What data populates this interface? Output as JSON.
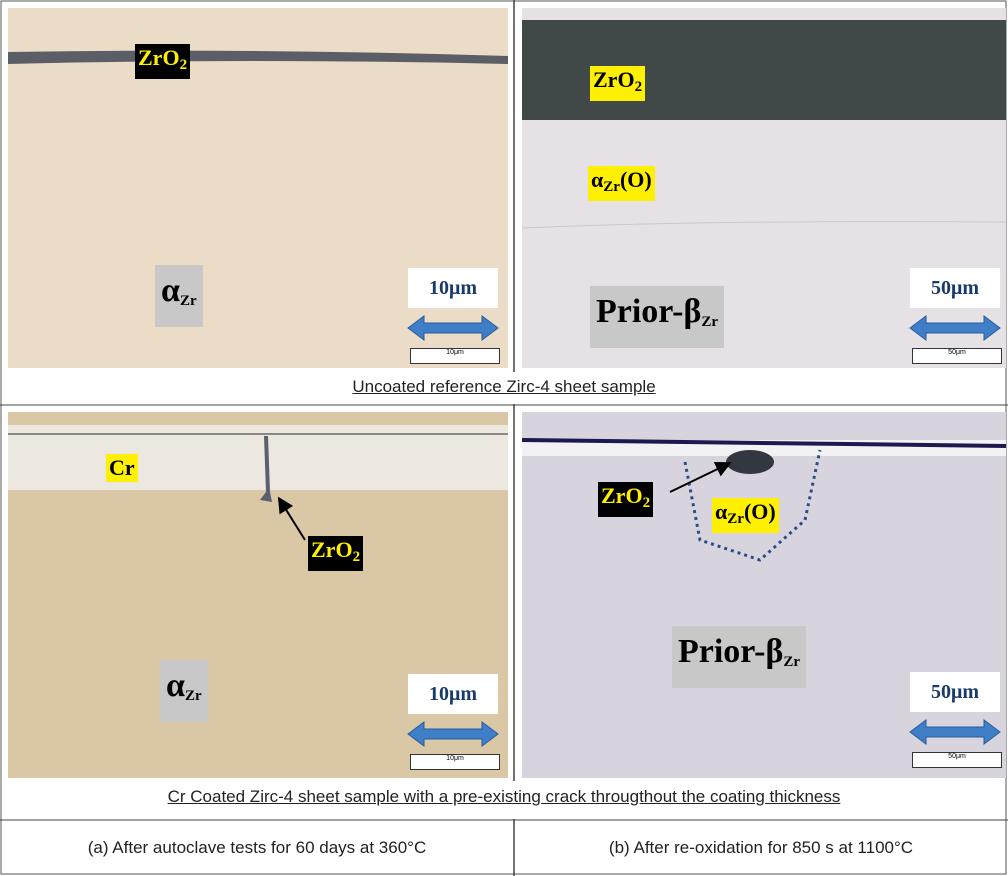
{
  "panels": [
    {
      "labels": [
        {
          "text": "ZrO",
          "sub": "2"
        },
        {
          "text": "α",
          "sub": "Zr"
        }
      ],
      "scale": {
        "label": "10μm",
        "bar_label": "10μm"
      }
    },
    {
      "labels": [
        {
          "text": "ZrO",
          "sub": "2"
        },
        {
          "text": "α",
          "sub": "Zr",
          "after": "(O)"
        },
        {
          "text": "Prior-β",
          "sub": "Zr"
        }
      ],
      "scale": {
        "label": "50μm",
        "bar_label": "50μm"
      }
    },
    {
      "labels": [
        {
          "text": "Cr"
        },
        {
          "text": "ZrO",
          "sub": "2"
        },
        {
          "text": "α",
          "sub": "Zr"
        }
      ],
      "scale": {
        "label": "10μm",
        "bar_label": "10μm"
      }
    },
    {
      "labels": [
        {
          "text": "ZrO",
          "sub": "2"
        },
        {
          "text": "α",
          "sub": "Zr",
          "after": "(O)"
        },
        {
          "text": "Prior-β",
          "sub": "Zr"
        }
      ],
      "scale": {
        "label": "50μm",
        "bar_label": "50μm"
      }
    }
  ],
  "row_captions": [
    "Uncoated reference Zirc-4 sheet sample",
    "Cr Coated Zirc-4 sheet sample with a pre-existing crack througthout the coating thickness"
  ],
  "column_captions": [
    "(a) After autoclave tests for 60 days at 360°C",
    "(b) After re-oxidation for 850 s at 1100°C"
  ]
}
